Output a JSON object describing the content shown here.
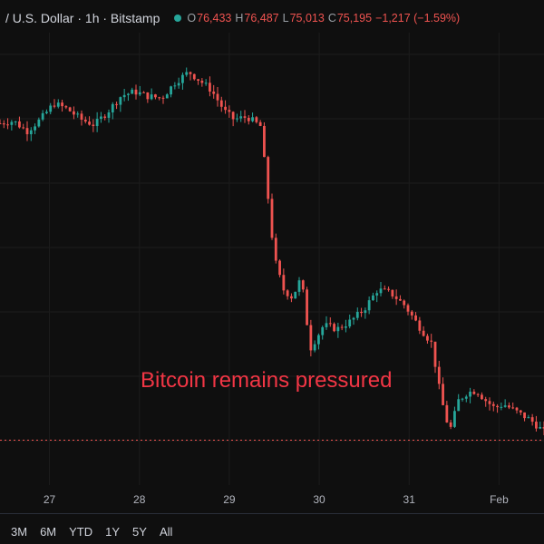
{
  "header": {
    "title": "/ U.S. Dollar · 1h · Bitstamp",
    "ohlc": [
      {
        "key": "O",
        "value": "76,433"
      },
      {
        "key": "H",
        "value": "76,487"
      },
      {
        "key": "L",
        "value": "75,013"
      },
      {
        "key": "C",
        "value": "75,195"
      }
    ],
    "change": "−1,217 (−1.59%)"
  },
  "annotation": "Bitcoin remains pressured",
  "range_buttons": [
    "3M",
    "6M",
    "YTD",
    "1Y",
    "5Y",
    "All"
  ],
  "colors": {
    "up": "#26a69a",
    "down": "#ef5350",
    "annotation": "#f23645",
    "background": "#0f0f0f"
  },
  "chart_data": {
    "type": "line",
    "title": "",
    "xlabel": "",
    "ylabel": "",
    "x_ticks": [
      "27",
      "28",
      "29",
      "30",
      "31",
      "Feb"
    ],
    "x_range": [
      26.45,
      32.5
    ],
    "y_range": [
      74800,
      80300
    ],
    "price_line": 75195,
    "series": [
      {
        "x": [
          26.45,
          26.6,
          26.75,
          26.9,
          27.05,
          27.2,
          27.35,
          27.5,
          27.65,
          27.8,
          27.95,
          28.1,
          28.25,
          28.4,
          28.55,
          28.65,
          28.8,
          28.95,
          29.05,
          29.2,
          29.35,
          29.5,
          29.6,
          29.7,
          29.8,
          29.9,
          30.05,
          30.2,
          30.35,
          30.5,
          30.65,
          30.8,
          30.95,
          31.1,
          31.25,
          31.35,
          31.45,
          31.55,
          31.65,
          31.75,
          31.85,
          31.95,
          32.05,
          32.2,
          32.35,
          32.5
        ],
        "values": [
          79200,
          79230,
          79100,
          79250,
          79450,
          79380,
          79250,
          79180,
          79350,
          79550,
          79600,
          79540,
          79520,
          79720,
          79850,
          79760,
          79620,
          79350,
          79250,
          79280,
          79160,
          77500,
          77100,
          77000,
          77250,
          76350,
          76650,
          76600,
          76700,
          76850,
          77100,
          77050,
          76900,
          76650,
          76420,
          75750,
          75300,
          75700,
          75800,
          75820,
          75700,
          75600,
          75650,
          75550,
          75450,
          75300
        ]
      }
    ]
  }
}
